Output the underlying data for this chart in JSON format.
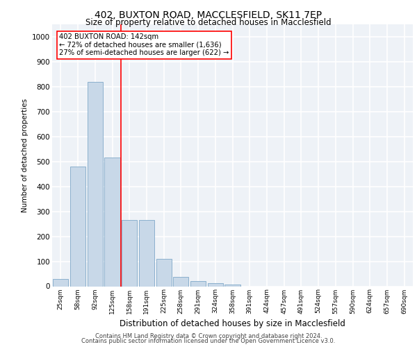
{
  "title_line1": "402, BUXTON ROAD, MACCLESFIELD, SK11 7EP",
  "title_line2": "Size of property relative to detached houses in Macclesfield",
  "xlabel": "Distribution of detached houses by size in Macclesfield",
  "ylabel": "Number of detached properties",
  "categories": [
    "25sqm",
    "58sqm",
    "92sqm",
    "125sqm",
    "158sqm",
    "191sqm",
    "225sqm",
    "258sqm",
    "291sqm",
    "324sqm",
    "358sqm",
    "391sqm",
    "424sqm",
    "457sqm",
    "491sqm",
    "524sqm",
    "557sqm",
    "590sqm",
    "624sqm",
    "657sqm",
    "690sqm"
  ],
  "values": [
    28,
    480,
    820,
    515,
    265,
    265,
    110,
    38,
    20,
    12,
    8,
    0,
    0,
    0,
    0,
    0,
    0,
    0,
    0,
    0,
    0
  ],
  "bar_color": "#c8d8e8",
  "bar_edge_color": "#7fa8c8",
  "vline_color": "red",
  "annotation_text": "402 BUXTON ROAD: 142sqm\n← 72% of detached houses are smaller (1,636)\n27% of semi-detached houses are larger (622) →",
  "annotation_box_color": "white",
  "annotation_box_edge_color": "red",
  "ylim": [
    0,
    1050
  ],
  "yticks": [
    0,
    100,
    200,
    300,
    400,
    500,
    600,
    700,
    800,
    900,
    1000
  ],
  "background_color": "#eef2f7",
  "grid_color": "white",
  "footer_line1": "Contains HM Land Registry data © Crown copyright and database right 2024.",
  "footer_line2": "Contains public sector information licensed under the Open Government Licence v3.0."
}
